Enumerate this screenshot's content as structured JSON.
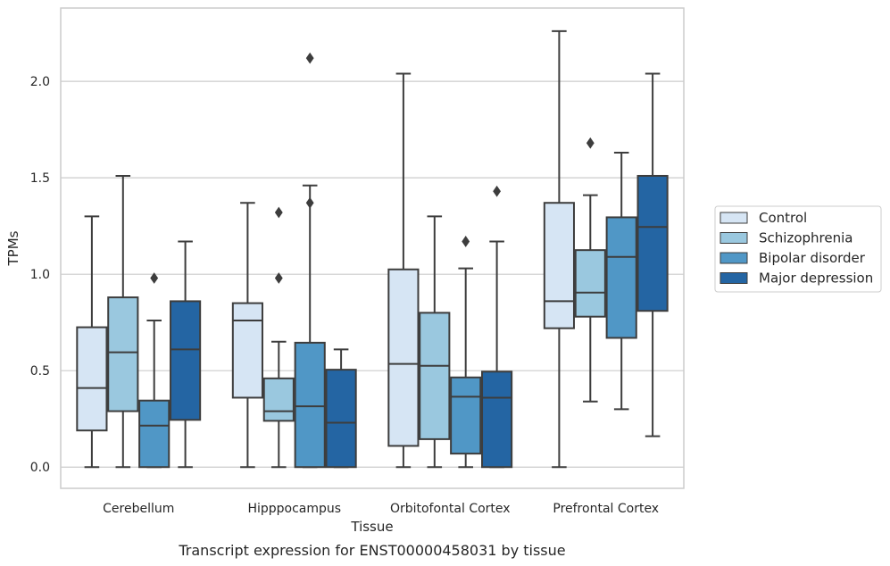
{
  "chart_data": {
    "type": "box",
    "xlabel": "Tissue",
    "ylabel": "TPMs",
    "caption": "Transcript expression for ENST00000458031 by tissue",
    "ylim": [
      -0.11,
      2.38
    ],
    "yticks": [
      "0.0",
      "0.5",
      "1.0",
      "1.5",
      "2.0"
    ],
    "grid": "horizontal",
    "legend_position": "right",
    "categories": [
      "Cerebellum",
      "Hipppocampus",
      "Orbitofontal Cortex",
      "Prefrontal Cortex"
    ],
    "series": [
      {
        "name": "Control",
        "color": "#d6e5f4",
        "boxes": [
          {
            "whislo": 0.0,
            "q1": 0.19,
            "med": 0.41,
            "q3": 0.725,
            "whishi": 1.3,
            "fliers": []
          },
          {
            "whislo": 0.0,
            "q1": 0.36,
            "med": 0.76,
            "q3": 0.85,
            "whishi": 1.37,
            "fliers": []
          },
          {
            "whislo": 0.0,
            "q1": 0.11,
            "med": 0.535,
            "q3": 1.025,
            "whishi": 2.04,
            "fliers": []
          },
          {
            "whislo": 0.0,
            "q1": 0.72,
            "med": 0.86,
            "q3": 1.37,
            "whishi": 2.26,
            "fliers": []
          }
        ]
      },
      {
        "name": "Schizophrenia",
        "color": "#9ac8df",
        "boxes": [
          {
            "whislo": 0.0,
            "q1": 0.29,
            "med": 0.595,
            "q3": 0.88,
            "whishi": 1.51,
            "fliers": []
          },
          {
            "whislo": 0.0,
            "q1": 0.24,
            "med": 0.29,
            "q3": 0.46,
            "whishi": 0.65,
            "fliers": [
              0.98,
              1.32
            ]
          },
          {
            "whislo": 0.0,
            "q1": 0.145,
            "med": 0.525,
            "q3": 0.8,
            "whishi": 1.3,
            "fliers": []
          },
          {
            "whislo": 0.34,
            "q1": 0.78,
            "med": 0.905,
            "q3": 1.125,
            "whishi": 1.41,
            "fliers": [
              1.68
            ]
          }
        ]
      },
      {
        "name": "Bipolar disorder",
        "color": "#5097c6",
        "boxes": [
          {
            "whislo": 0.0,
            "q1": 0.0,
            "med": 0.215,
            "q3": 0.345,
            "whishi": 0.76,
            "fliers": [
              0.98
            ]
          },
          {
            "whislo": 0.0,
            "q1": 0.0,
            "med": 0.315,
            "q3": 0.645,
            "whishi": 1.46,
            "fliers": [
              1.37,
              2.12
            ]
          },
          {
            "whislo": 0.0,
            "q1": 0.07,
            "med": 0.365,
            "q3": 0.465,
            "whishi": 1.03,
            "fliers": [
              1.17
            ]
          },
          {
            "whislo": 0.3,
            "q1": 0.67,
            "med": 1.09,
            "q3": 1.295,
            "whishi": 1.63,
            "fliers": []
          }
        ]
      },
      {
        "name": "Major depression",
        "color": "#2465a3",
        "boxes": [
          {
            "whislo": 0.0,
            "q1": 0.245,
            "med": 0.61,
            "q3": 0.86,
            "whishi": 1.17,
            "fliers": []
          },
          {
            "whislo": 0.0,
            "q1": 0.0,
            "med": 0.23,
            "q3": 0.505,
            "whishi": 0.61,
            "fliers": []
          },
          {
            "whislo": 0.0,
            "q1": 0.0,
            "med": 0.36,
            "q3": 0.495,
            "whishi": 1.17,
            "fliers": [
              1.43
            ]
          },
          {
            "whislo": 0.16,
            "q1": 0.81,
            "med": 1.245,
            "q3": 1.51,
            "whishi": 2.04,
            "fliers": []
          }
        ]
      }
    ]
  }
}
